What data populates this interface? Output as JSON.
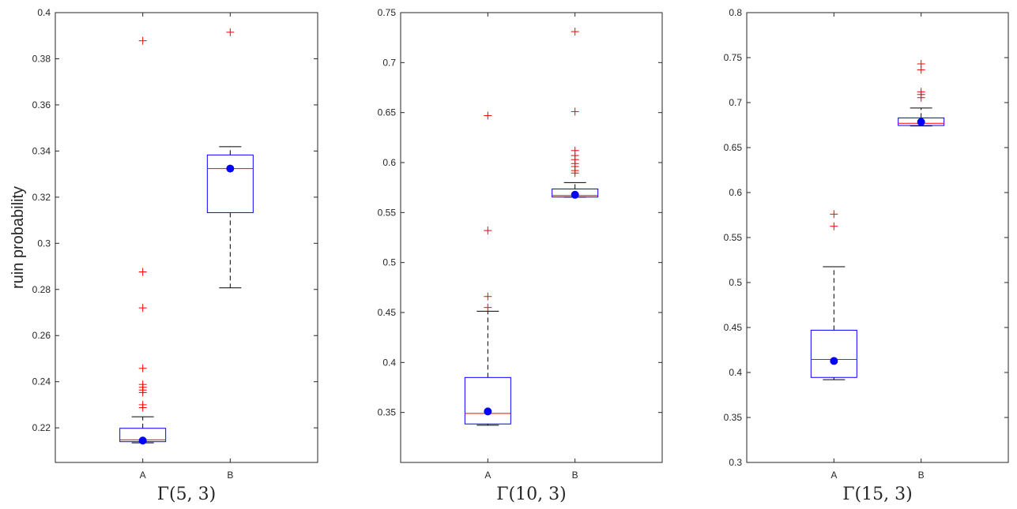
{
  "figure": {
    "ylabel": "ruin probability"
  },
  "chart_data": [
    {
      "type": "box",
      "xlabel": "Γ(5, 3)",
      "categories": [
        "A",
        "B"
      ],
      "ylim": [
        0.205,
        0.4
      ],
      "yticks": [
        "0.22",
        "0.24",
        "0.26",
        "0.28",
        "0.3",
        "0.32",
        "0.34",
        "0.36",
        "0.38",
        "0.4"
      ],
      "boxes": [
        {
          "category": "A",
          "q1": 0.214,
          "median": 0.2148,
          "q3": 0.2198,
          "whisker_low": 0.2135,
          "whisker_high": 0.2248,
          "mean": 0.2145,
          "outliers": [
            0.3878,
            0.2876,
            0.272,
            0.2458,
            0.2388,
            0.2376,
            0.2364,
            0.2353,
            0.23,
            0.2288
          ]
        },
        {
          "category": "B",
          "q1": 0.3133,
          "median": 0.3324,
          "q3": 0.3383,
          "whisker_low": 0.2807,
          "whisker_high": 0.3419,
          "mean": 0.3324,
          "outliers": [
            0.3915
          ]
        }
      ]
    },
    {
      "type": "box",
      "xlabel": "Γ(10, 3)",
      "categories": [
        "A",
        "B"
      ],
      "ylim": [
        0.3,
        0.75
      ],
      "yticks": [
        "0.35",
        "0.4",
        "0.45",
        "0.5",
        "0.55",
        "0.6",
        "0.65",
        "0.7",
        "0.75"
      ],
      "boxes": [
        {
          "category": "A",
          "q1": 0.3385,
          "median": 0.349,
          "q3": 0.385,
          "whisker_low": 0.3372,
          "whisker_high": 0.4513,
          "mean": 0.351,
          "outliers": [
            0.647,
            0.532,
            0.466,
            0.455
          ]
        },
        {
          "category": "B",
          "q1": 0.5655,
          "median": 0.567,
          "q3": 0.5736,
          "whisker_low": 0.5655,
          "whisker_high": 0.58,
          "mean": 0.5678,
          "outliers": [
            0.731,
            0.651,
            0.612,
            0.607,
            0.603,
            0.599,
            0.596,
            0.592,
            0.5895
          ]
        }
      ]
    },
    {
      "type": "box",
      "xlabel": "Γ(15, 3)",
      "categories": [
        "A",
        "B"
      ],
      "ylim": [
        0.3,
        0.8
      ],
      "yticks": [
        "0.3",
        "0.35",
        "0.4",
        "0.45",
        "0.5",
        "0.55",
        "0.6",
        "0.65",
        "0.7",
        "0.75",
        "0.8"
      ],
      "boxes": [
        {
          "category": "A",
          "q1": 0.3945,
          "median": 0.4145,
          "q3": 0.447,
          "whisker_low": 0.392,
          "whisker_high": 0.5175,
          "mean": 0.4128,
          "outliers": [
            0.576,
            0.5625
          ]
        },
        {
          "category": "B",
          "q1": 0.6745,
          "median": 0.677,
          "q3": 0.683,
          "whisker_low": 0.674,
          "whisker_high": 0.694,
          "mean": 0.6785,
          "outliers": [
            0.743,
            0.7365,
            0.712,
            0.709,
            0.7055
          ]
        }
      ]
    }
  ]
}
